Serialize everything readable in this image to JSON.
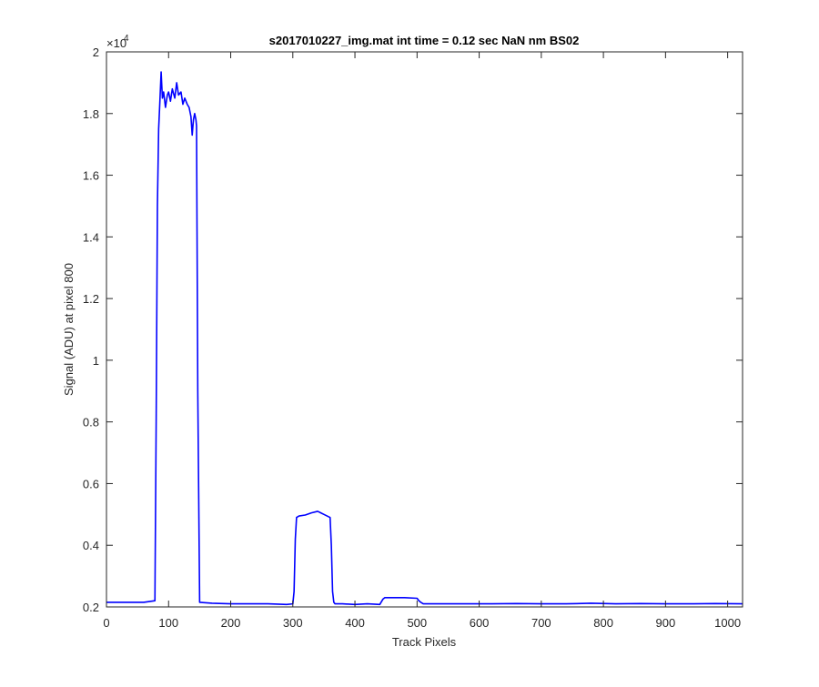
{
  "chart_data": {
    "type": "line",
    "title": "s2017010227_img.mat int time = 0.12 sec  NaN nm BS02",
    "xlabel": "Track Pixels",
    "ylabel": "Signal (ADU) at pixel 800",
    "xlim": [
      0,
      1024
    ],
    "ylim": [
      2000,
      20000
    ],
    "x_ticks": [
      0,
      100,
      200,
      300,
      400,
      500,
      600,
      700,
      800,
      900,
      1000
    ],
    "y_ticks": [
      2000,
      4000,
      6000,
      8000,
      10000,
      12000,
      14000,
      16000,
      18000,
      20000
    ],
    "y_tick_labels": [
      "0.2",
      "0.4",
      "0.6",
      "0.8",
      "1",
      "1.2",
      "1.4",
      "1.6",
      "1.8",
      "2"
    ],
    "y_exponent_label": "×10",
    "y_exponent_power": "4",
    "grid": false,
    "series": [
      {
        "color": "#0000ff",
        "x": [
          0,
          20,
          40,
          60,
          78,
          80,
          82,
          84,
          86,
          88,
          90,
          92,
          95,
          98,
          100,
          103,
          106,
          110,
          113,
          116,
          120,
          123,
          126,
          130,
          133,
          136,
          138,
          140,
          142,
          144,
          145,
          147,
          150,
          170,
          200,
          230,
          260,
          290,
          300,
          302,
          304,
          306,
          310,
          320,
          330,
          340,
          345,
          350,
          360,
          362,
          364,
          366,
          368,
          380,
          400,
          420,
          440,
          445,
          448,
          460,
          480,
          500,
          503,
          506,
          510,
          540,
          580,
          620,
          660,
          700,
          740,
          780,
          820,
          860,
          900,
          940,
          980,
          1024
        ],
        "y": [
          2150,
          2150,
          2150,
          2150,
          2200,
          8000,
          15000,
          17500,
          18400,
          19350,
          18500,
          18700,
          18200,
          18600,
          18700,
          18400,
          18800,
          18500,
          19000,
          18600,
          18700,
          18300,
          18500,
          18300,
          18200,
          17900,
          17300,
          17800,
          18000,
          17800,
          17600,
          9000,
          2150,
          2120,
          2100,
          2100,
          2100,
          2080,
          2100,
          2500,
          4200,
          4900,
          4950,
          4980,
          5050,
          5100,
          5050,
          5000,
          4900,
          4000,
          2500,
          2150,
          2100,
          2100,
          2080,
          2100,
          2080,
          2250,
          2300,
          2300,
          2300,
          2280,
          2200,
          2150,
          2100,
          2100,
          2100,
          2100,
          2110,
          2100,
          2100,
          2120,
          2100,
          2110,
          2100,
          2100,
          2110,
          2100
        ]
      }
    ]
  }
}
